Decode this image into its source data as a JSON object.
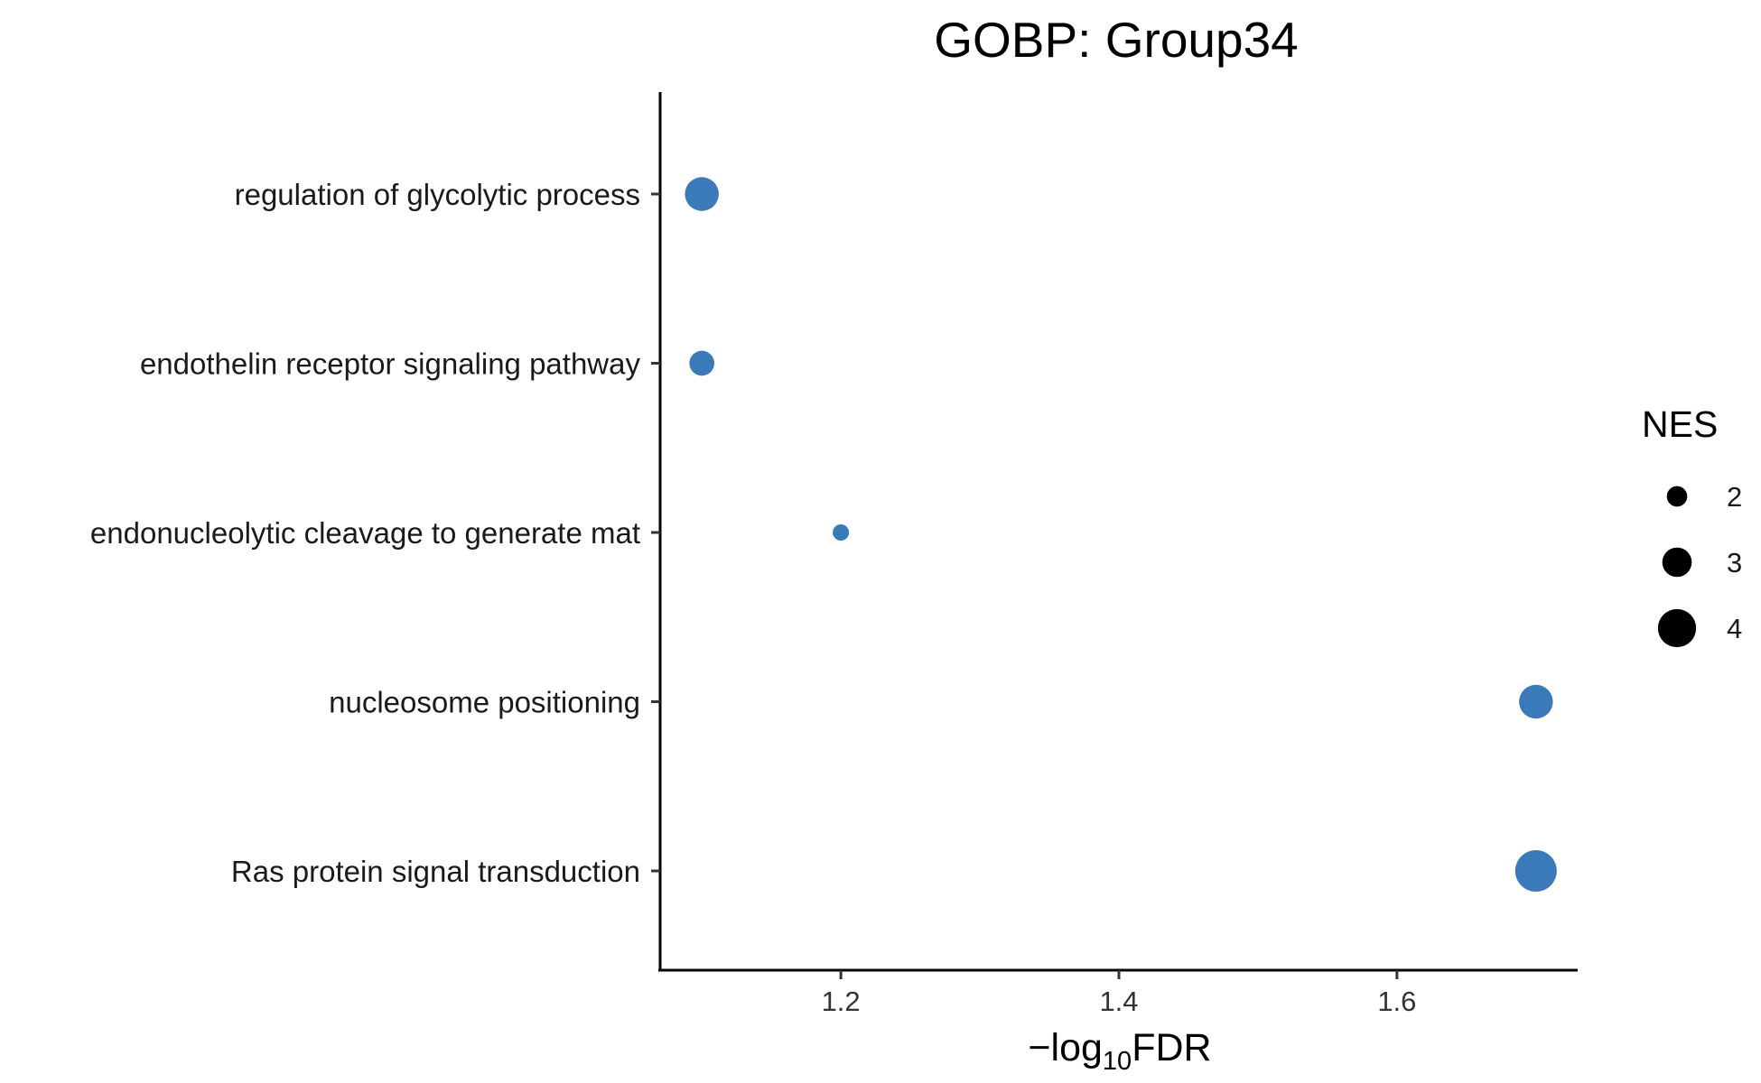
{
  "chart_data": {
    "type": "scatter",
    "title": "GOBP: Group34",
    "xlabel": {
      "prefix": "−log",
      "subscript": "10",
      "suffix": "FDR"
    },
    "ylabel": "",
    "xlim": [
      1.07,
      1.73
    ],
    "x_ticks": [
      1.2,
      1.4,
      1.6
    ],
    "x_tick_labels": [
      "1.2",
      "1.4",
      "1.6"
    ],
    "categories": [
      "regulation of glycolytic process",
      "endothelin receptor signaling pathway",
      "endonucleolytic cleavage to generate mat",
      "nucleosome positioning",
      "Ras protein signal transduction"
    ],
    "points": [
      {
        "term": "regulation of glycolytic process",
        "x": 1.1,
        "nes": 3.5
      },
      {
        "term": "endothelin receptor signaling pathway",
        "x": 1.1,
        "nes": 2.5
      },
      {
        "term": "endonucleolytic cleavage to generate mat",
        "x": 1.2,
        "nes": 1.55
      },
      {
        "term": "nucleosome positioning",
        "x": 1.7,
        "nes": 3.5
      },
      {
        "term": "Ras protein signal transduction",
        "x": 1.7,
        "nes": 4.4
      }
    ],
    "point_color": "#3A7AB8",
    "size_legend": {
      "title": "NES",
      "values": [
        2,
        3,
        4
      ],
      "labels": [
        "2",
        "3",
        "4"
      ],
      "color": "#000000",
      "position": "right"
    },
    "grid": false
  }
}
